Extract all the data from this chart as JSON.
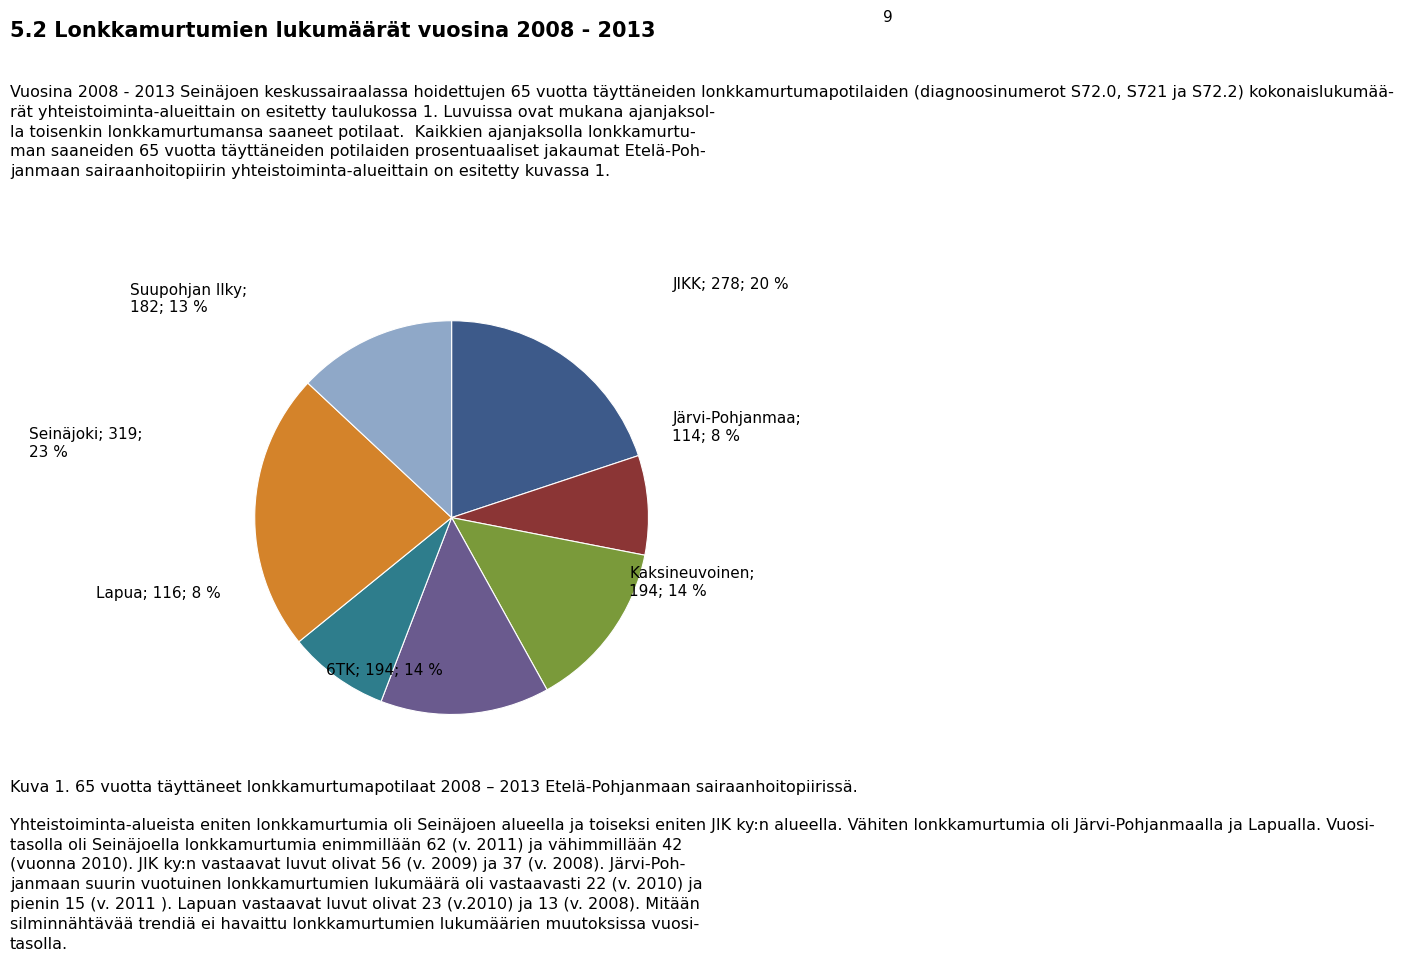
{
  "page_number": "9",
  "title": "5.2 Lonkkamurtumien lukumäärät vuosina 2008 - 2013",
  "body_text": "Vuosina 2008 - 2013 Seinäjoen keskussairaalassa hoidettujen 65 vuotta täyttäneiden lonkkamurtumapotilaiden (diagnoosinumerot S72.0, S721 ja S72.2) kokonaislukumää-\nrät yhteistoiminta-alueittain on esitetty taulukossa 1. Luvuissa ovat mukana ajanjaksol-\nla toisenkin lonkkamurtumansa saaneet potilaat.  Kaikkien ajanjaksolla lonkkamurtu-\nman saaneiden 65 vuotta täyttäneiden potilaiden prosentuaaliset jakaumat Etelä-Poh-\njanmaan sairaanhoitopiirin yhteistoiminta-alueittain on esitetty kuvassa 1.",
  "caption": "Kuva 1. 65 vuotta täyttäneet lonkkamurtumapotilaat 2008 – 2013 Etelä-Pohjanmaan sairaanhoitopiirissä.",
  "paragraph3": "Yhteistoiminta-alueista eniten lonkkamurtumia oli Seinäjoen alueella ja toiseksi eniten JIK ky:n alueella. Vähiten lonkkamurtumia oli Järvi-Pohjanmaalla ja Lapualla. Vuosi-\ntasolla oli Seinäjoella lonkkamurtumia enimmillään 62 (v. 2011) ja vähimmillään 42\n(vuonna 2010). JIK ky:n vastaavat luvut olivat 56 (v. 2009) ja 37 (v. 2008). Järvi-Poh-\njanmaan suurin vuotuinen lonkkamurtumien lukumäärä oli vastaavasti 22 (v. 2010) ja\npienin 15 (v. 2011 ). Lapuan vastaavat luvut olivat 23 (v.2010) ja 13 (v. 2008). Mitään\nsilminnähtävää trendiä ei havaittu lonkkamurtumien lukumäärien muutoksissa vuosi-\ntasolla.",
  "slices": [
    {
      "label": "JIKK; 278; 20 %",
      "value": 278,
      "color": "#3D5A8A"
    },
    {
      "label": "Järvi-Pohjanmaa;\n114; 8 %",
      "value": 114,
      "color": "#8B3535"
    },
    {
      "label": "Kaksineuvoinen;\n194; 14 %",
      "value": 194,
      "color": "#7A9A3A"
    },
    {
      "label": "6TK; 194; 14 %",
      "value": 194,
      "color": "#6A5A8E"
    },
    {
      "label": "Lapua; 116; 8 %",
      "value": 116,
      "color": "#2E7D8C"
    },
    {
      "label": "Seinäjoki; 319;\n23 %",
      "value": 319,
      "color": "#D4832A"
    },
    {
      "label": "Suupohjan Ilky;\n182; 13 %",
      "value": 182,
      "color": "#8FA8C8"
    }
  ],
  "font_size_title": 15,
  "font_size_body": 11.5,
  "font_size_caption": 11.5,
  "font_size_pie_label": 11,
  "font_size_page_num": 11,
  "background_color": "#FFFFFF",
  "text_color": "#000000"
}
